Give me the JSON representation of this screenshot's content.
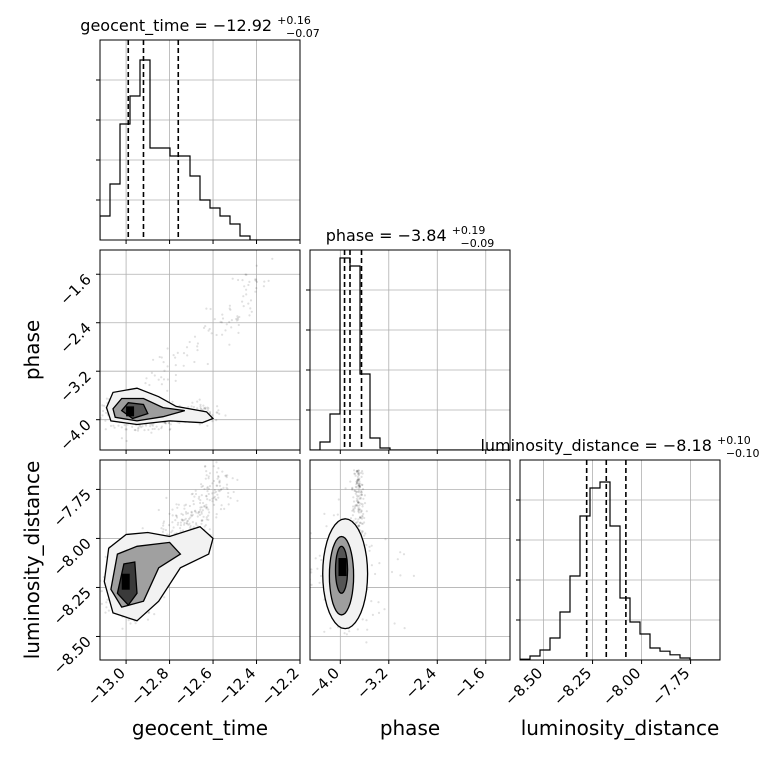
{
  "chart_data": {
    "type": "corner",
    "parameters": [
      "geocent_time",
      "phase",
      "luminosity_distance"
    ],
    "axis_labels": [
      "geocent_time",
      "phase",
      "luminosity_distance"
    ],
    "ranges": {
      "geocent_time": [
        -13.12,
        -12.2
      ],
      "phase": [
        -4.5,
        -1.2
      ],
      "luminosity_distance": [
        -8.62,
        -7.6
      ]
    },
    "ticks": {
      "geocent_time": {
        "values": [
          -13.0,
          -12.8,
          -12.6,
          -12.4,
          -12.2
        ],
        "labels": [
          "−13.0",
          "−12.8",
          "−12.6",
          "−12.4",
          "−12.2"
        ]
      },
      "phase": {
        "values": [
          -4.0,
          -3.2,
          -2.4,
          -1.6
        ],
        "labels": [
          "−4.0",
          "−3.2",
          "−2.4",
          "−1.6"
        ]
      },
      "luminosity_distance": {
        "values": [
          -8.5,
          -8.25,
          -8.0,
          -7.75
        ],
        "labels": [
          "−8.50",
          "−8.25",
          "−8.00",
          "−7.75"
        ]
      }
    },
    "titles": [
      {
        "param": "geocent_time",
        "text": "geocent_time = −12.92",
        "sup": "+0.16",
        "sub": "−0.07"
      },
      {
        "param": "phase",
        "text": "phase = −3.84",
        "sup": "+0.19",
        "sub": "−0.09"
      },
      {
        "param": "luminosity_distance",
        "text": "luminosity_distance = −8.18",
        "sup": "+0.10",
        "sub": "−0.10"
      }
    ],
    "histograms": [
      {
        "param": "geocent_time",
        "bin_edges": [
          -13.12,
          -13.074,
          -13.028,
          -12.982,
          -12.936,
          -12.89,
          -12.844,
          -12.798,
          -12.752,
          -12.706,
          -12.66,
          -12.614,
          -12.568,
          -12.522,
          -12.476,
          -12.43,
          -12.384,
          -12.338,
          -12.292,
          -12.246,
          -12.2
        ],
        "counts": [
          0.6,
          1.4,
          2.9,
          3.6,
          4.5,
          2.3,
          2.3,
          2.1,
          2.1,
          1.6,
          1.0,
          0.8,
          0.6,
          0.4,
          0.1,
          0,
          0,
          0,
          0,
          0
        ],
        "max_count": 5.0,
        "quantiles": [
          -12.99,
          -12.92,
          -12.76
        ]
      },
      {
        "param": "phase",
        "bin_edges": [
          -4.5,
          -4.335,
          -4.17,
          -4.005,
          -3.84,
          -3.675,
          -3.51,
          -3.345,
          -3.18,
          -3.015,
          -2.85,
          -2.685,
          -2.52,
          -2.355,
          -2.19,
          -2.025,
          -1.86,
          -1.695,
          -1.53,
          -1.365,
          -1.2
        ],
        "counts": [
          0,
          0.2,
          0.9,
          4.8,
          4.6,
          1.9,
          0.3,
          0.05,
          0,
          0,
          0,
          0,
          0,
          0,
          0,
          0,
          0,
          0,
          0,
          0
        ],
        "max_count": 5.0,
        "quantiles": [
          -3.93,
          -3.84,
          -3.65
        ]
      },
      {
        "param": "luminosity_distance",
        "bin_edges": [
          -8.62,
          -8.569,
          -8.518,
          -8.467,
          -8.416,
          -8.365,
          -8.314,
          -8.263,
          -8.212,
          -8.161,
          -8.11,
          -8.059,
          -8.008,
          -7.957,
          -7.906,
          -7.855,
          -7.804,
          -7.753,
          -7.702,
          -7.651,
          -7.6
        ],
        "counts": [
          0.02,
          0.1,
          0.25,
          0.55,
          1.2,
          2.1,
          3.6,
          4.3,
          4.45,
          3.35,
          1.55,
          0.95,
          0.65,
          0.3,
          0.22,
          0.13,
          0.05,
          0,
          0,
          0
        ],
        "max_count": 5.0,
        "quantiles": [
          -8.28,
          -8.18,
          -8.08
        ]
      }
    ],
    "contours_2d": [
      {
        "x": "geocent_time",
        "y": "phase",
        "peak": [
          -12.95,
          -3.92
        ],
        "mode_fill": [
          -12.98,
          -13.0
        ]
      },
      {
        "x": "geocent_time",
        "y": "luminosity_distance",
        "peak": [
          -12.99,
          -8.2
        ]
      },
      {
        "x": "phase",
        "y": "luminosity_distance",
        "peak": [
          -3.98,
          -8.18
        ]
      }
    ],
    "grid": true
  }
}
